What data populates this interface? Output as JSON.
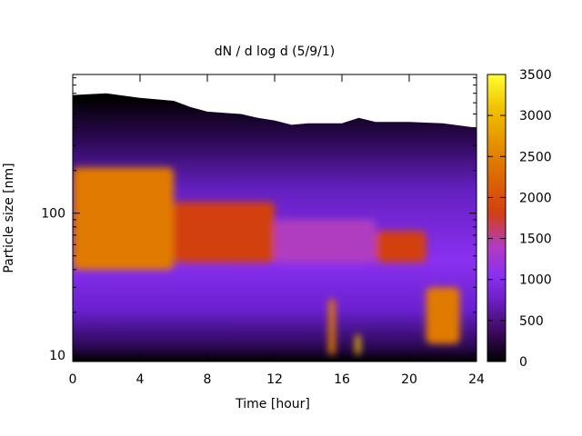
{
  "chart_data": {
    "type": "heatmap",
    "title": "dN / d log d (5/9/1)",
    "xlabel": "Time [hour]",
    "ylabel": "Particle size [nm]",
    "xlim": [
      0,
      24
    ],
    "ylim": [
      9,
      950
    ],
    "y_scale": "log",
    "x_ticks": [
      "0",
      "4",
      "8",
      "12",
      "16",
      "20",
      "24"
    ],
    "y_ticks": [
      "10",
      "100"
    ],
    "colorbar": {
      "range": [
        0,
        3500
      ],
      "ticks": [
        "0",
        "500",
        "1000",
        "1500",
        "2000",
        "2500",
        "3000",
        "3500"
      ],
      "palette": [
        "#000000",
        "#3a0a5a",
        "#7020c8",
        "#8a30f0",
        "#b03cc0",
        "#d24010",
        "#e07a00",
        "#f0c000",
        "#ffff30"
      ]
    },
    "background_color": "#ffffff",
    "regions": [
      {
        "hours": [
          0,
          6
        ],
        "size_nm": [
          40,
          210
        ],
        "value": 1900
      },
      {
        "hours": [
          6,
          12
        ],
        "size_nm": [
          45,
          120
        ],
        "value": 1700
      },
      {
        "hours": [
          12,
          18
        ],
        "size_nm": [
          45,
          90
        ],
        "value": 1400
      },
      {
        "hours": [
          18,
          21
        ],
        "size_nm": [
          45,
          75
        ],
        "value": 1600
      },
      {
        "hours": [
          21,
          23
        ],
        "size_nm": [
          12,
          30
        ],
        "value": 2300
      },
      {
        "hours": [
          15.2,
          15.6
        ],
        "size_nm": [
          10,
          25
        ],
        "value": 2100
      },
      {
        "hours": [
          16.8,
          17.1
        ],
        "size_nm": [
          10,
          14
        ],
        "value": 2500
      }
    ],
    "grid": false
  }
}
